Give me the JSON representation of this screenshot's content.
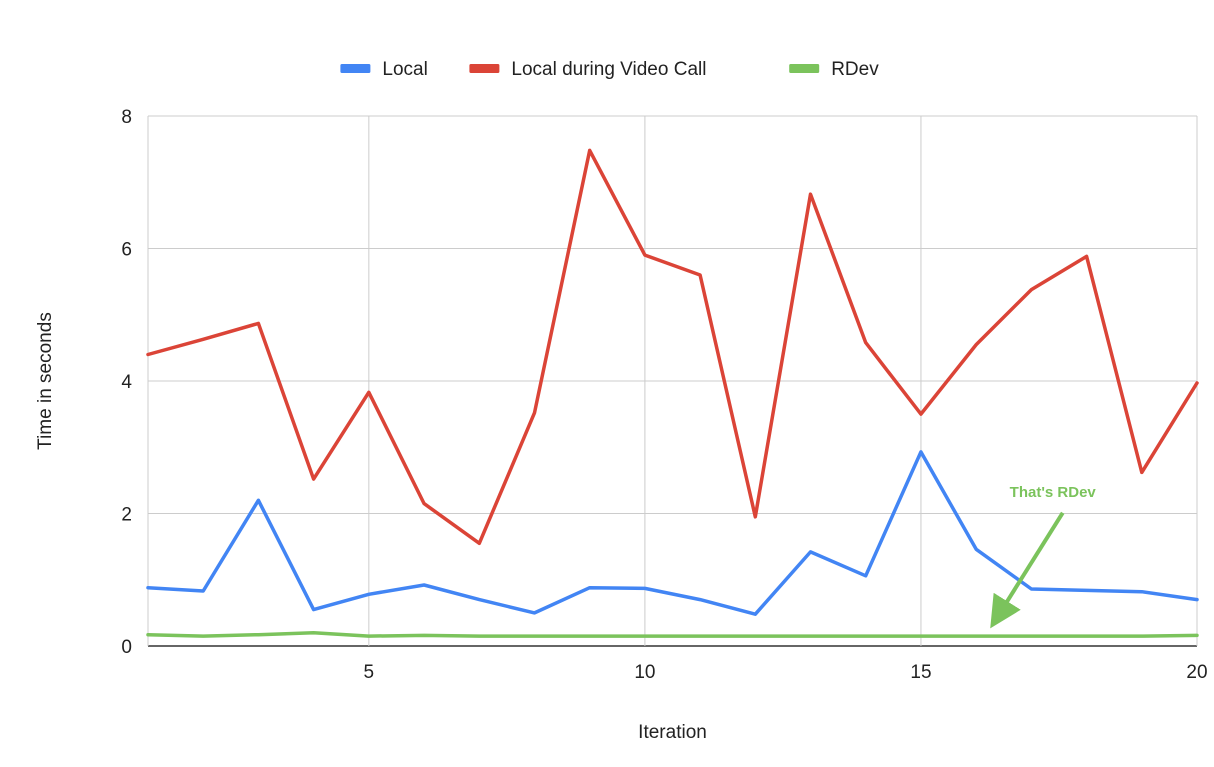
{
  "chart_data": {
    "type": "line",
    "title": "",
    "xlabel": "Iteration",
    "ylabel": "Time in seconds",
    "x": [
      1,
      2,
      3,
      4,
      5,
      6,
      7,
      8,
      9,
      10,
      11,
      12,
      13,
      14,
      15,
      16,
      17,
      18,
      19,
      20
    ],
    "xlim": [
      1,
      20
    ],
    "ylim": [
      0,
      8
    ],
    "x_ticks": [
      5,
      10,
      15,
      20
    ],
    "y_ticks": [
      0,
      2,
      4,
      6,
      8
    ],
    "grid": true,
    "legend_position": "top",
    "series": [
      {
        "name": "Local",
        "color": "#4285f4",
        "values": [
          0.88,
          0.83,
          2.2,
          0.55,
          0.78,
          0.92,
          0.7,
          0.5,
          0.88,
          0.87,
          0.7,
          0.48,
          1.42,
          1.06,
          2.93,
          1.46,
          0.86,
          0.84,
          0.82,
          0.7
        ]
      },
      {
        "name": "Local during Video Call",
        "color": "#db4437",
        "values": [
          4.4,
          4.63,
          4.87,
          2.52,
          3.83,
          2.15,
          1.55,
          3.52,
          7.48,
          5.9,
          5.6,
          1.95,
          6.82,
          4.58,
          3.5,
          4.55,
          5.38,
          5.88,
          2.62,
          3.97
        ]
      },
      {
        "name": "RDev",
        "color": "#7bc35c",
        "values": [
          0.17,
          0.15,
          0.17,
          0.2,
          0.15,
          0.16,
          0.15,
          0.15,
          0.15,
          0.15,
          0.15,
          0.15,
          0.15,
          0.15,
          0.15,
          0.15,
          0.15,
          0.15,
          0.15,
          0.16
        ]
      }
    ],
    "annotations": [
      {
        "text": "That's RDev",
        "color": "#7bc35c",
        "target_x": 16.3,
        "target_y": 0.35
      }
    ]
  }
}
